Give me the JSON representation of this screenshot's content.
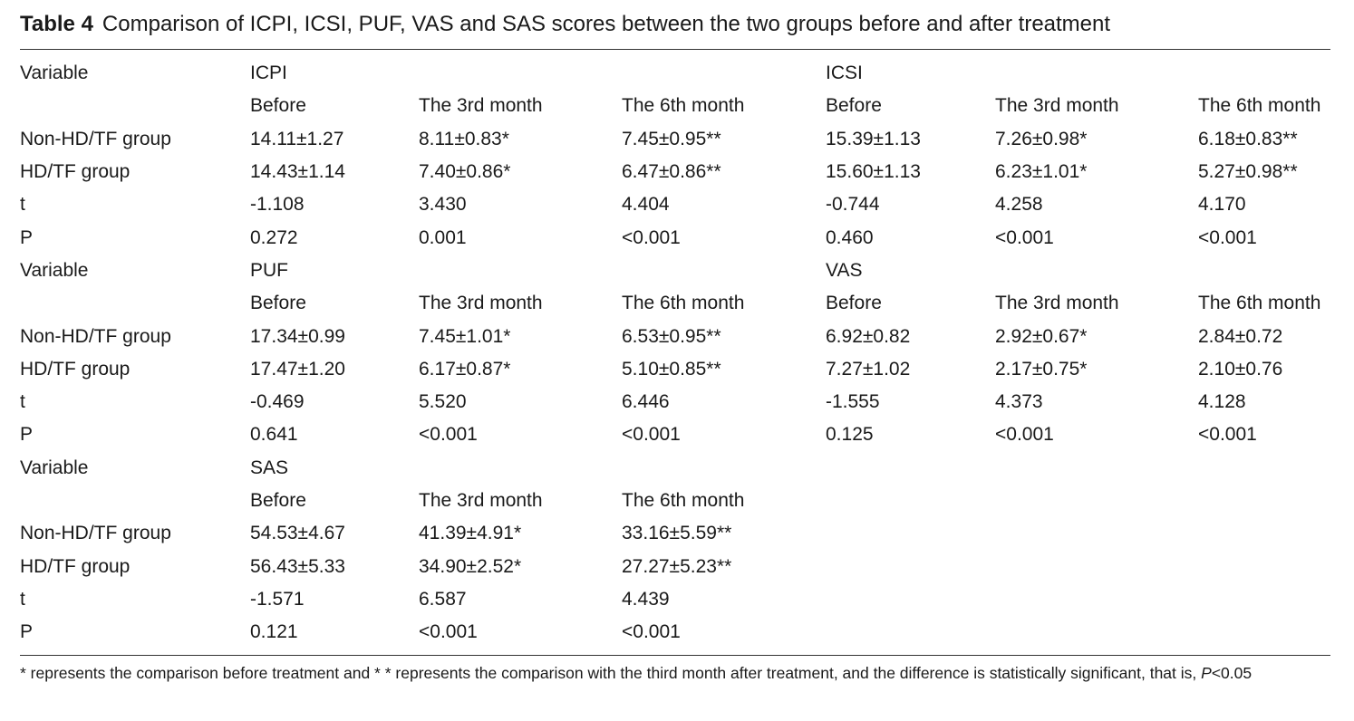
{
  "caption": {
    "label": "Table 4",
    "text": "Comparison of ICPI, ICSI, PUF, VAS and SAS scores between the two groups before and after treatment"
  },
  "rows": [
    [
      "Variable",
      "ICPI",
      "",
      "",
      "ICSI",
      "",
      ""
    ],
    [
      "",
      "Before",
      "The 3rd month",
      "The 6th month",
      "Before",
      "The 3rd month",
      "The 6th month"
    ],
    [
      "Non-HD/TF group",
      "14.11±1.27",
      "8.11±0.83*",
      "7.45±0.95**",
      "15.39±1.13",
      "7.26±0.98*",
      "6.18±0.83**"
    ],
    [
      "HD/TF group",
      "14.43±1.14",
      "7.40±0.86*",
      "6.47±0.86**",
      "15.60±1.13",
      "6.23±1.01*",
      "5.27±0.98**"
    ],
    [
      "t",
      "-1.108",
      "3.430",
      "4.404",
      "-0.744",
      "4.258",
      "4.170"
    ],
    [
      "P",
      "0.272",
      "0.001",
      "<0.001",
      "0.460",
      "<0.001",
      "<0.001"
    ],
    [
      "Variable",
      "PUF",
      "",
      "",
      "VAS",
      "",
      ""
    ],
    [
      "",
      "Before",
      "The 3rd month",
      "The 6th month",
      "Before",
      "The 3rd month",
      "The 6th month"
    ],
    [
      "Non-HD/TF group",
      "17.34±0.99",
      "7.45±1.01*",
      "6.53±0.95**",
      "6.92±0.82",
      "2.92±0.67*",
      "2.84±0.72"
    ],
    [
      "HD/TF group",
      "17.47±1.20",
      "6.17±0.87*",
      "5.10±0.85**",
      "7.27±1.02",
      "2.17±0.75*",
      "2.10±0.76"
    ],
    [
      "t",
      "-0.469",
      "5.520",
      "6.446",
      "-1.555",
      "4.373",
      "4.128"
    ],
    [
      "P",
      "0.641",
      "<0.001",
      "<0.001",
      "0.125",
      "<0.001",
      "<0.001"
    ],
    [
      "Variable",
      "SAS",
      "",
      "",
      "",
      "",
      ""
    ],
    [
      "",
      "Before",
      "The 3rd month",
      "The 6th month",
      "",
      "",
      ""
    ],
    [
      "Non-HD/TF group",
      "54.53±4.67",
      "41.39±4.91*",
      "33.16±5.59**",
      "",
      "",
      ""
    ],
    [
      "HD/TF group",
      "56.43±5.33",
      "34.90±2.52*",
      "27.27±5.23**",
      "",
      "",
      ""
    ],
    [
      "t",
      "-1.571",
      "6.587",
      "4.439",
      "",
      "",
      ""
    ],
    [
      "P",
      "0.121",
      "<0.001",
      "<0.001",
      "",
      "",
      ""
    ]
  ],
  "footnote": {
    "text": "* represents the comparison before treatment and * * represents the comparison with the third month after treatment, and the difference is statistically significant, that is, ",
    "p_symbol": "P",
    "p_value": "<0.05"
  }
}
